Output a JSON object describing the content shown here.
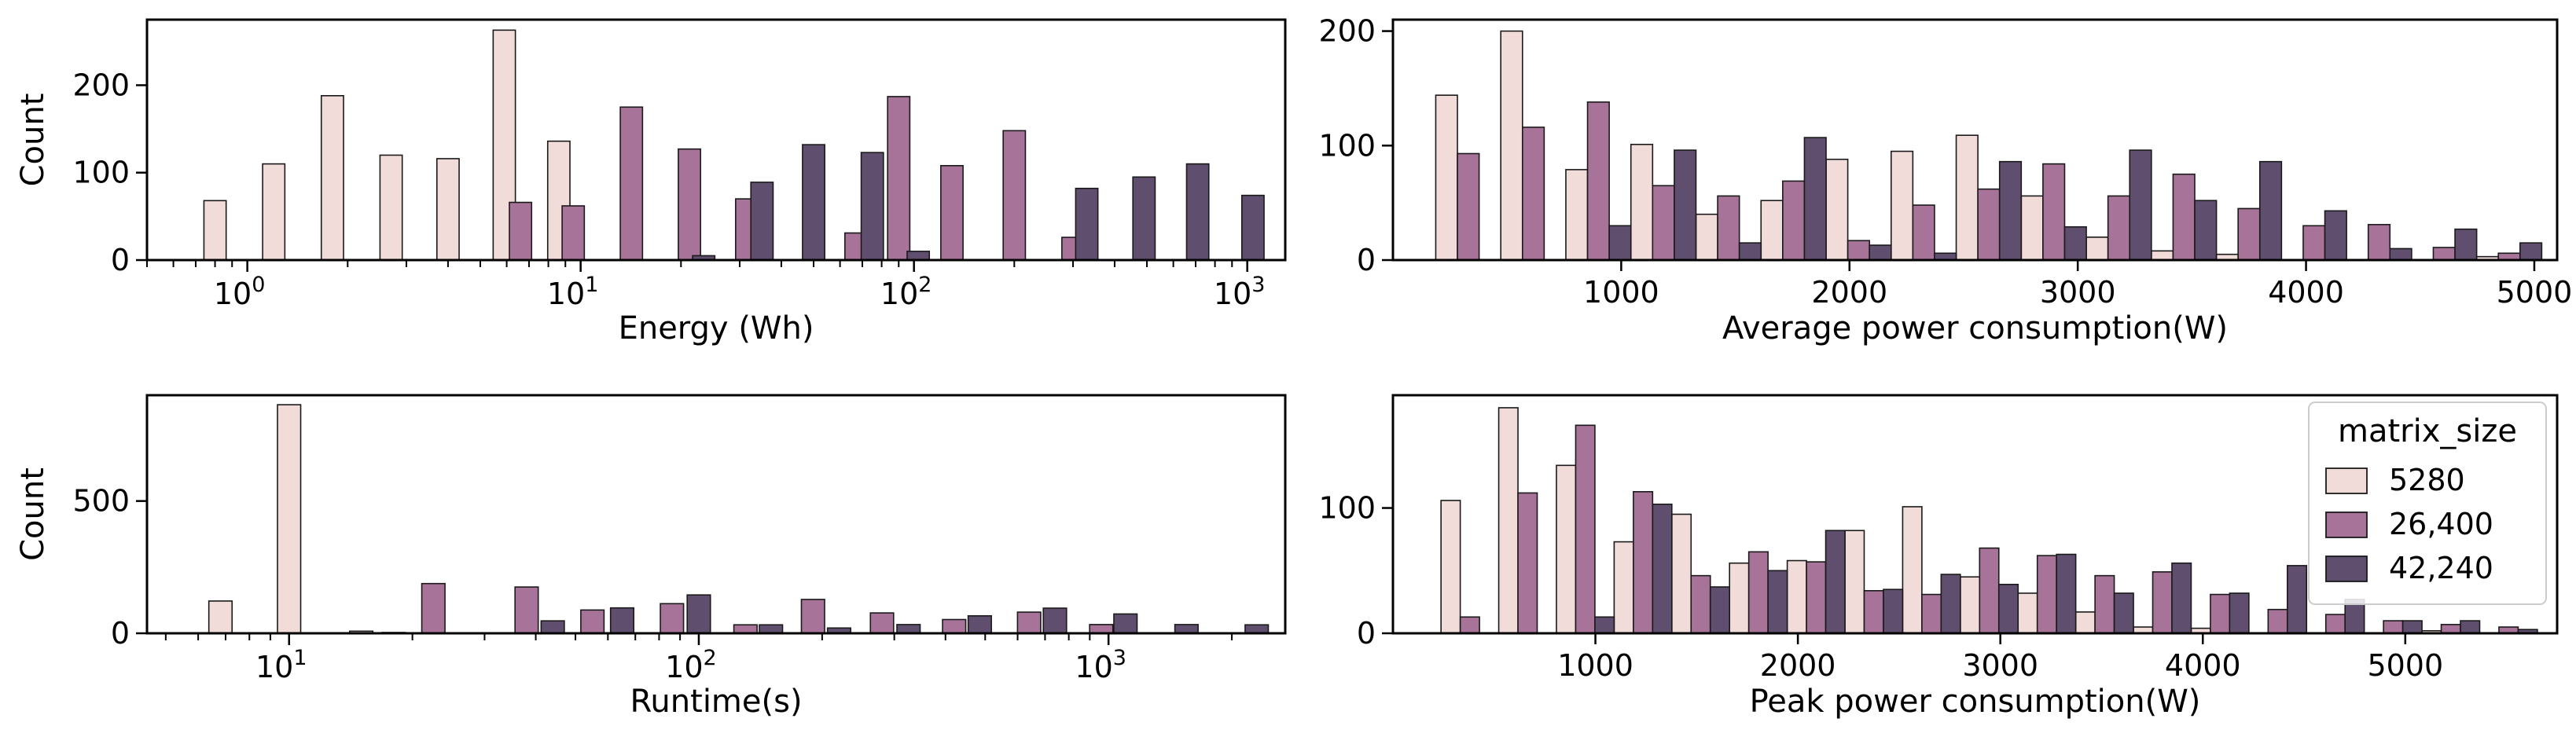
{
  "colors": {
    "5280": "#f2dcd9",
    "26,400": "#a77399",
    "42,240": "#5f4e6e",
    "edge": "#1a1a1a"
  },
  "legend": {
    "title": "matrix_size",
    "entries": [
      "5280",
      "26,400",
      "42,240"
    ]
  },
  "chart_data": [
    {
      "id": "energy",
      "type": "bar",
      "scale": "log",
      "xlabel": "Energy (Wh)",
      "ylabel": "Count",
      "xlim": [
        0.5,
        1300
      ],
      "ylim": [
        0,
        275
      ],
      "yticks": [
        0,
        100,
        200
      ],
      "xticks": [
        1,
        10,
        100,
        1000
      ],
      "xtick_labels": [
        "10^0",
        "10^1",
        "10^2",
        "10^3"
      ],
      "bin_width_log10": 0.2,
      "series": [
        {
          "name": "5280",
          "bins": [
            [
              0.8,
              68
            ],
            [
              1.2,
              110
            ],
            [
              1.8,
              188
            ],
            [
              2.7,
              120
            ],
            [
              4.0,
              116
            ],
            [
              5.9,
              263
            ],
            [
              8.6,
              136
            ]
          ]
        },
        {
          "name": "26,400",
          "bins": [
            [
              6.6,
              66
            ],
            [
              9.5,
              62
            ],
            [
              14.2,
              175
            ],
            [
              21.2,
              127
            ],
            [
              31.5,
              70
            ],
            [
              67,
              31
            ],
            [
              90,
              187
            ],
            [
              130,
              108
            ],
            [
              200,
              148
            ],
            [
              300,
              26
            ]
          ]
        },
        {
          "name": "42,240",
          "bins": [
            [
              23.4,
              5
            ],
            [
              35,
              89
            ],
            [
              50,
              132
            ],
            [
              75,
              123
            ],
            [
              103,
              10
            ],
            [
              330,
              82
            ],
            [
              490,
              95
            ],
            [
              710,
              110
            ],
            [
              1040,
              74
            ]
          ]
        }
      ]
    },
    {
      "id": "avgpower",
      "type": "bar",
      "scale": "linear",
      "xlabel": "Average power consumption(W)",
      "ylabel": "",
      "xlim": [
        0,
        5100
      ],
      "ylim": [
        0,
        210
      ],
      "yticks": [
        0,
        100,
        200
      ],
      "xticks": [
        1000,
        2000,
        3000,
        4000,
        5000
      ],
      "group_width": 285,
      "series": [
        {
          "name": "5280",
          "bins": [
            [
              330,
              144
            ],
            [
              615,
              200
            ],
            [
              900,
              79
            ],
            [
              1185,
              101
            ],
            [
              1470,
              40
            ],
            [
              1755,
              52
            ],
            [
              2040,
              88
            ],
            [
              2325,
              95
            ],
            [
              2610,
              109
            ],
            [
              2895,
              56
            ],
            [
              3180,
              20
            ],
            [
              3465,
              8
            ],
            [
              3750,
              5
            ],
            [
              4890,
              3
            ]
          ]
        },
        {
          "name": "26,400",
          "bins": [
            [
              330,
              93
            ],
            [
              615,
              116
            ],
            [
              900,
              138
            ],
            [
              1185,
              65
            ],
            [
              1470,
              56
            ],
            [
              1755,
              69
            ],
            [
              2040,
              17
            ],
            [
              2325,
              48
            ],
            [
              2610,
              62
            ],
            [
              2895,
              84
            ],
            [
              3180,
              56
            ],
            [
              3465,
              75
            ],
            [
              3750,
              45
            ],
            [
              4035,
              30
            ],
            [
              4320,
              31
            ],
            [
              4605,
              11
            ],
            [
              4890,
              6
            ]
          ]
        },
        {
          "name": "42,240",
          "bins": [
            [
              900,
              30
            ],
            [
              1185,
              96
            ],
            [
              1470,
              15
            ],
            [
              1755,
              107
            ],
            [
              2040,
              13
            ],
            [
              2325,
              6
            ],
            [
              2610,
              86
            ],
            [
              2895,
              29
            ],
            [
              3180,
              96
            ],
            [
              3465,
              52
            ],
            [
              3750,
              86
            ],
            [
              4035,
              43
            ],
            [
              4320,
              10
            ],
            [
              4605,
              27
            ],
            [
              4890,
              15
            ]
          ]
        }
      ]
    },
    {
      "id": "runtime",
      "type": "bar",
      "scale": "log",
      "xlabel": "Runtime(s)",
      "ylabel": "Count",
      "xlim": [
        4.5,
        2700
      ],
      "ylim": [
        0,
        900
      ],
      "yticks": [
        0,
        500
      ],
      "xticks": [
        10,
        100,
        1000
      ],
      "xtick_labels": [
        "10^1",
        "10^2",
        "10^3"
      ],
      "bin_width_log10": 0.17,
      "series": [
        {
          "name": "5280",
          "bins": [
            [
              6.8,
              122
            ],
            [
              10,
              864
            ],
            [
              15,
              8
            ]
          ]
        },
        {
          "name": "26,400",
          "bins": [
            [
              22.5,
              188
            ],
            [
              38,
              175
            ],
            [
              55,
              88
            ],
            [
              86,
              112
            ],
            [
              130,
              32
            ],
            [
              190,
              128
            ],
            [
              280,
              77
            ],
            [
              420,
              52
            ],
            [
              640,
              80
            ],
            [
              960,
              33
            ]
          ]
        },
        {
          "name": "42,240",
          "bins": [
            [
              18,
              3
            ],
            [
              44,
              47
            ],
            [
              65,
              96
            ],
            [
              100,
              145
            ],
            [
              150,
              32
            ],
            [
              220,
              20
            ],
            [
              325,
              33
            ],
            [
              485,
              66
            ],
            [
              740,
              95
            ],
            [
              1100,
              73
            ],
            [
              1550,
              33
            ],
            [
              2300,
              32
            ]
          ]
        }
      ]
    },
    {
      "id": "peakpower",
      "type": "bar",
      "scale": "linear",
      "xlabel": "Peak power consumption(W)",
      "ylabel": "",
      "xlim": [
        0,
        5750
      ],
      "ylim": [
        0,
        190
      ],
      "yticks": [
        0,
        100
      ],
      "xticks": [
        1000,
        2000,
        3000,
        4000,
        5000
      ],
      "group_width": 285,
      "legend": true,
      "series": [
        {
          "name": "5280",
          "bins": [
            [
              380,
              106
            ],
            [
              665,
              180
            ],
            [
              950,
              134
            ],
            [
              1235,
              73
            ],
            [
              1520,
              95
            ],
            [
              1805,
              56
            ],
            [
              2090,
              58
            ],
            [
              2375,
              82
            ],
            [
              2660,
              101
            ],
            [
              2945,
              45
            ],
            [
              3230,
              32
            ],
            [
              3515,
              17
            ],
            [
              3800,
              5
            ],
            [
              4085,
              4
            ],
            [
              5225,
              2
            ]
          ]
        },
        {
          "name": "26,400",
          "bins": [
            [
              380,
              13
            ],
            [
              665,
              112
            ],
            [
              950,
              166
            ],
            [
              1235,
              113
            ],
            [
              1520,
              46
            ],
            [
              1805,
              65
            ],
            [
              2090,
              57
            ],
            [
              2375,
              34
            ],
            [
              2660,
              31
            ],
            [
              2945,
              68
            ],
            [
              3230,
              62
            ],
            [
              3515,
              46
            ],
            [
              3800,
              49
            ],
            [
              4085,
              31
            ],
            [
              4370,
              19
            ],
            [
              4655,
              15
            ],
            [
              4940,
              10
            ],
            [
              5225,
              7
            ],
            [
              5510,
              5
            ]
          ]
        },
        {
          "name": "42,240",
          "bins": [
            [
              950,
              13
            ],
            [
              1235,
              103
            ],
            [
              1520,
              37
            ],
            [
              1805,
              50
            ],
            [
              2090,
              82
            ],
            [
              2375,
              35
            ],
            [
              2660,
              47
            ],
            [
              2945,
              39
            ],
            [
              3230,
              63
            ],
            [
              3515,
              32
            ],
            [
              3800,
              56
            ],
            [
              4085,
              32
            ],
            [
              4370,
              54
            ],
            [
              4655,
              27
            ],
            [
              4940,
              10
            ],
            [
              5225,
              10
            ],
            [
              5510,
              3
            ]
          ]
        }
      ]
    }
  ]
}
